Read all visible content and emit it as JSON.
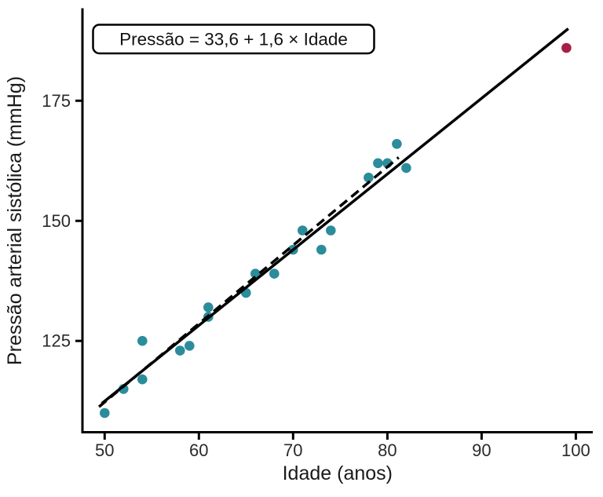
{
  "figure": {
    "background": "#ffffff"
  },
  "chart_data": {
    "type": "scatter",
    "title": "",
    "annotation": "Pressão = 33,6 + 1,6 × Idade",
    "xlabel": "Idade (anos)",
    "ylabel": "Pressão arterial sistólica (mmHg)",
    "x_ticks": [
      50,
      60,
      70,
      80,
      90,
      100
    ],
    "y_ticks": [
      125,
      150,
      175
    ],
    "xlim": [
      47.6,
      101.8
    ],
    "ylim": [
      106,
      194
    ],
    "grid": false,
    "legend": "none",
    "series": [
      {
        "name": "observations",
        "color": "#2b8c9b",
        "marker_radius": 6.3,
        "points": [
          [
            50,
            110
          ],
          [
            52,
            115
          ],
          [
            54,
            117
          ],
          [
            54,
            125
          ],
          [
            58,
            123
          ],
          [
            59,
            124
          ],
          [
            61,
            130
          ],
          [
            61,
            132
          ],
          [
            65,
            135
          ],
          [
            66,
            139
          ],
          [
            68,
            139
          ],
          [
            70,
            144
          ],
          [
            71,
            148
          ],
          [
            73,
            144
          ],
          [
            74,
            148
          ],
          [
            78,
            159
          ],
          [
            79,
            162
          ],
          [
            80,
            162
          ],
          [
            81,
            166
          ],
          [
            82,
            161
          ]
        ]
      },
      {
        "name": "outlier",
        "color": "#a81e45",
        "marker_radius": 6.3,
        "points": [
          [
            99,
            186
          ]
        ]
      }
    ],
    "fit_lines": [
      {
        "name": "fit-with-outlier",
        "style": "solid",
        "color": "#000000",
        "equation": "Pressão = 33,6 + 1,6 × Idade",
        "x1": 49.7,
        "y1": 112.0,
        "x2": 99.2,
        "y2": 190.0
      },
      {
        "name": "fit-without-outlier",
        "style": "dashed",
        "color": "#000000",
        "x1": 49.4,
        "y1": 111.3,
        "x2": 81.2,
        "y2": 163.2
      }
    ],
    "colors": {
      "axis": "#000000",
      "tick_text": "#2a2a2a",
      "title_text": "#1a1a1a",
      "annotation_border": "#000000",
      "annotation_bg": "#ffffff"
    }
  }
}
